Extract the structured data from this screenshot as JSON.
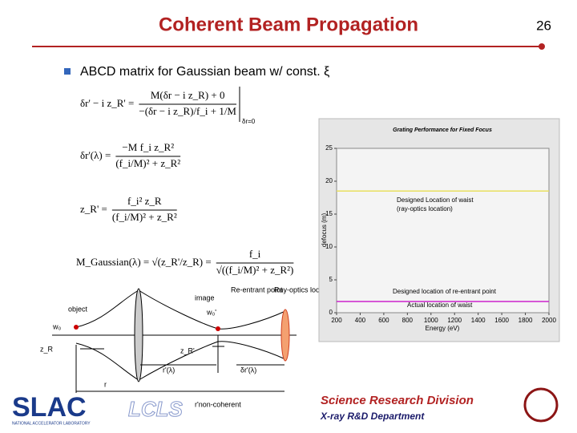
{
  "header": {
    "title": "Coherent Beam Propagation",
    "page_number": "26"
  },
  "bullet": "ABCD matrix for Gaussian beam w/ const. ξ",
  "equations": [
    {
      "lhs": "δr' − i z_R' =",
      "num": "M(δr − i z_R) + 0",
      "den": "−(δr − i z_R)/f_i + 1/M",
      "note": "δr=0"
    },
    {
      "lhs": "δr'(λ) =",
      "num": "−M f_i z_R²",
      "den": "(f_i/M)² + z_R²"
    },
    {
      "lhs": "z_R' =",
      "num": "f_i² z_R",
      "den": "(f_i/M)² + z_R²"
    },
    {
      "lhs": "M_Gaussian(λ) = √(z_R'/z_R) =",
      "num": "f_i",
      "den": "√((f_i/M)² + z_R²)"
    }
  ],
  "diagram": {
    "object": "object",
    "image": "image",
    "reentrant": "Re-entrant point",
    "ray_optics": "Ray-optics location",
    "w0": "w₀",
    "w0_prime": "w₀'",
    "zR": "z_R",
    "zR_prime": "z_R'",
    "r_prime": "r'(λ)",
    "delta_r_prime": "δr'(λ)",
    "r": "r",
    "r_noncoherent": "r'non-coherent"
  },
  "chart_data": {
    "type": "line",
    "title": "Grating Performance for Fixed Focus",
    "xlabel": "Energy (eV)",
    "ylabel": "defocus (m)",
    "xlim": [
      200,
      2000
    ],
    "ylim": [
      0,
      25
    ],
    "xticks": [
      200,
      400,
      600,
      800,
      1000,
      1200,
      1400,
      1600,
      1800,
      2000
    ],
    "yticks": [
      0,
      5,
      10,
      15,
      20,
      25
    ],
    "series": [
      {
        "name": "Designed Location of waist",
        "color": "#e8e060",
        "x": [
          200,
          2000
        ],
        "values": [
          18.5,
          18.5
        ]
      },
      {
        "name": "Actual location of waist",
        "color": "#cc22cc",
        "x": [
          200,
          2000
        ],
        "values": [
          1.7,
          1.7
        ]
      }
    ],
    "annotations": [
      "(ray-optics location)",
      "Designed location of re-entrant point"
    ]
  },
  "footer": {
    "division": "Science Research Division",
    "department": "X-ray R&D Department",
    "slac": "SLAC",
    "slac_sub": "NATIONAL ACCELERATOR LABORATORY",
    "lcls": "LCLS"
  }
}
